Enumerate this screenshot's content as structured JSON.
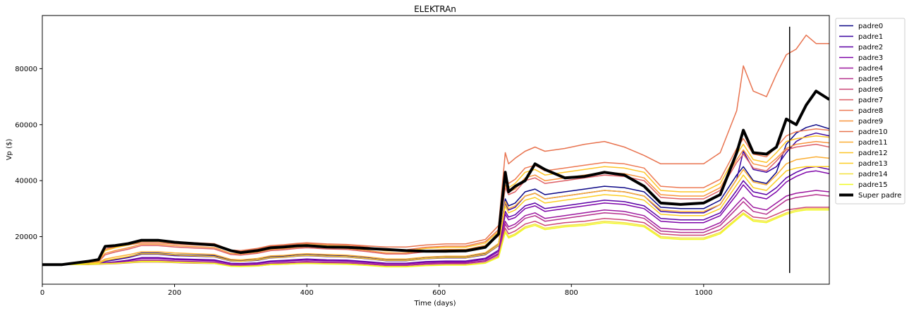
{
  "chart_data": {
    "type": "line",
    "title": "ELEKTRAn",
    "xlabel": "Time (days)",
    "ylabel": "Vp ($)",
    "xlim": [
      0,
      1190
    ],
    "ylim": [
      3000,
      99000
    ],
    "xticks": [
      0,
      200,
      400,
      600,
      800,
      1000
    ],
    "yticks": [
      20000,
      40000,
      60000,
      80000
    ],
    "xtick_labels": [
      "0",
      "200",
      "400",
      "600",
      "800",
      "1000"
    ],
    "ytick_labels": [
      "20000",
      "40000",
      "60000",
      "80000"
    ],
    "grid": false,
    "legend_position": "outside right, top",
    "vline": {
      "x": 1130,
      "ymin": 7000,
      "ymax": 95000,
      "color": "#000000"
    },
    "x": [
      0,
      30,
      50,
      70,
      85,
      95,
      110,
      130,
      150,
      175,
      200,
      230,
      260,
      285,
      300,
      325,
      345,
      365,
      385,
      400,
      430,
      460,
      490,
      520,
      550,
      580,
      610,
      640,
      670,
      690,
      700,
      705,
      715,
      730,
      745,
      760,
      790,
      820,
      850,
      880,
      910,
      935,
      965,
      1000,
      1025,
      1050,
      1060,
      1075,
      1095,
      1110,
      1125,
      1140,
      1155,
      1170,
      1190
    ],
    "series": [
      {
        "name": "padre0",
        "color": "#0d0887",
        "values": [
          10000,
          10000,
          10200,
          10300,
          10500,
          11400,
          11900,
          12800,
          14100,
          14100,
          13600,
          13400,
          13200,
          11600,
          11500,
          11800,
          12800,
          13000,
          13500,
          13700,
          13400,
          13200,
          12600,
          11900,
          11900,
          12600,
          12900,
          12900,
          14100,
          17500,
          33500,
          31000,
          32000,
          36000,
          37000,
          35000,
          36000,
          37000,
          38000,
          37500,
          36000,
          30500,
          30000,
          30000,
          33000,
          42000,
          45000,
          40000,
          39000,
          43000,
          53000,
          57000,
          59000,
          60000,
          58500
        ]
      },
      {
        "name": "padre1",
        "color": "#3a04a0",
        "values": [
          10000,
          10000,
          10200,
          10300,
          10500,
          11200,
          11700,
          12500,
          13700,
          13700,
          13200,
          13000,
          12800,
          11300,
          11200,
          11500,
          12400,
          12600,
          13000,
          13200,
          12900,
          12700,
          12100,
          11400,
          11400,
          12100,
          12400,
          12400,
          13500,
          16800,
          32000,
          29500,
          30500,
          34500,
          35500,
          33500,
          34500,
          35500,
          36500,
          36000,
          34500,
          29000,
          28500,
          28500,
          31500,
          40500,
          50500,
          44000,
          43000,
          45000,
          50000,
          54000,
          56000,
          57000,
          56000
        ]
      },
      {
        "name": "padre2",
        "color": "#5c01a6",
        "values": [
          10000,
          10000,
          10100,
          10200,
          10300,
          10700,
          11000,
          11600,
          12500,
          12500,
          12100,
          11900,
          11700,
          10500,
          10400,
          10600,
          11300,
          11500,
          11800,
          12000,
          11700,
          11600,
          11100,
          10500,
          10500,
          11100,
          11300,
          11300,
          12300,
          15200,
          29000,
          27000,
          27800,
          31000,
          32000,
          30000,
          31000,
          32000,
          33000,
          32500,
          31000,
          26500,
          26000,
          26000,
          28500,
          36500,
          40000,
          36000,
          35000,
          37500,
          41000,
          43000,
          44500,
          45000,
          44000
        ]
      },
      {
        "name": "padre3",
        "color": "#7e03a8",
        "values": [
          10000,
          10000,
          10100,
          10200,
          10300,
          10600,
          10900,
          11400,
          12200,
          12200,
          11800,
          11600,
          11400,
          10300,
          10200,
          10400,
          11000,
          11200,
          11500,
          11600,
          11400,
          11300,
          10800,
          10300,
          10300,
          10800,
          11000,
          11000,
          11900,
          14700,
          28000,
          26000,
          26800,
          30000,
          31000,
          29000,
          30000,
          31000,
          32000,
          31500,
          30000,
          25500,
          25000,
          25000,
          27500,
          35000,
          38500,
          34500,
          33500,
          36000,
          39500,
          41500,
          43000,
          43500,
          42500
        ]
      },
      {
        "name": "padre4",
        "color": "#9c179e",
        "values": [
          10000,
          10000,
          10050,
          10100,
          10200,
          10400,
          10600,
          11000,
          11600,
          11600,
          11300,
          11100,
          10900,
          9900,
          9800,
          10000,
          10500,
          10700,
          11000,
          11100,
          10900,
          10800,
          10400,
          9900,
          9900,
          10400,
          10600,
          10600,
          11400,
          14000,
          25500,
          23500,
          24500,
          27500,
          28500,
          26500,
          27500,
          28500,
          29500,
          29000,
          27500,
          23000,
          22500,
          22500,
          25000,
          31500,
          34000,
          30500,
          29500,
          32000,
          34500,
          35500,
          36000,
          36500,
          36000
        ]
      },
      {
        "name": "padre5",
        "color": "#b52f8c",
        "values": [
          10000,
          10000,
          10050,
          10100,
          10200,
          10400,
          10500,
          10900,
          11400,
          11400,
          11100,
          10900,
          10700,
          9700,
          9600,
          9800,
          10300,
          10500,
          10800,
          10900,
          10700,
          10600,
          10200,
          9700,
          9700,
          10200,
          10400,
          10400,
          11200,
          13600,
          24500,
          22500,
          23500,
          26500,
          27500,
          25500,
          26500,
          27500,
          28500,
          28000,
          26500,
          22000,
          21500,
          21500,
          24000,
          30000,
          32500,
          29000,
          28000,
          30500,
          33000,
          34000,
          34500,
          35000,
          34500
        ]
      },
      {
        "name": "padre6",
        "color": "#cc4778",
        "values": [
          10000,
          10000,
          10000,
          10000,
          10100,
          10200,
          10300,
          10600,
          10900,
          10900,
          10700,
          10500,
          10400,
          9500,
          9400,
          9500,
          10000,
          10100,
          10400,
          10500,
          10300,
          10200,
          9800,
          9300,
          9300,
          9800,
          10000,
          10000,
          10700,
          13000,
          23000,
          21000,
          22000,
          24500,
          25500,
          24000,
          25000,
          25500,
          26500,
          26000,
          25000,
          21000,
          20500,
          20500,
          22500,
          27500,
          29500,
          27000,
          26500,
          28000,
          29500,
          30000,
          30500,
          30500,
          30500
        ]
      },
      {
        "name": "padre7",
        "color": "#de5f65",
        "values": [
          10000,
          10000,
          10300,
          10600,
          11000,
          13500,
          14500,
          15500,
          16800,
          16800,
          16300,
          15900,
          15600,
          13600,
          13400,
          14000,
          15000,
          15300,
          15800,
          16000,
          15600,
          15400,
          14700,
          13800,
          13800,
          14600,
          15000,
          15000,
          16400,
          20300,
          37500,
          35000,
          36000,
          40000,
          41000,
          39000,
          40000,
          41000,
          42000,
          41500,
          40000,
          34000,
          33500,
          33500,
          36500,
          46500,
          49500,
          44500,
          43500,
          47000,
          51000,
          52000,
          52500,
          53000,
          52000
        ]
      },
      {
        "name": "padre8",
        "color": "#ed7953",
        "values": [
          10000,
          10000,
          10400,
          10800,
          11500,
          15500,
          16500,
          17500,
          18800,
          18800,
          18200,
          17800,
          17500,
          15200,
          15000,
          15600,
          16600,
          16900,
          17400,
          17600,
          17200,
          17000,
          16300,
          15300,
          15300,
          16200,
          16600,
          16600,
          18200,
          22500,
          42000,
          39000,
          40500,
          44500,
          45500,
          43500,
          44500,
          45500,
          46500,
          46000,
          44500,
          38000,
          37500,
          37500,
          40500,
          51500,
          55000,
          49500,
          48500,
          52000,
          56000,
          57500,
          58000,
          58500,
          58000
        ]
      },
      {
        "name": "padre9",
        "color": "#f8953d",
        "values": [
          10000,
          10000,
          10300,
          10600,
          11100,
          14000,
          15000,
          16000,
          17300,
          17300,
          16800,
          16400,
          16100,
          14000,
          13800,
          14400,
          15400,
          15700,
          16200,
          16400,
          16000,
          15800,
          15100,
          14200,
          14200,
          15000,
          15400,
          15400,
          16900,
          20800,
          38500,
          36000,
          37000,
          41000,
          42000,
          40000,
          41000,
          42000,
          43000,
          42500,
          41000,
          35000,
          34500,
          34500,
          37500,
          47500,
          51000,
          46000,
          45000,
          48000,
          51500,
          53000,
          53500,
          54000,
          53500
        ]
      },
      {
        "name": "padre10",
        "color": "#e8734f",
        "values": [
          10000,
          10000,
          10500,
          11000,
          12000,
          15500,
          16300,
          17000,
          17800,
          17800,
          17400,
          17000,
          16800,
          15200,
          15000,
          15800,
          16800,
          17100,
          17600,
          17800,
          17400,
          17200,
          16700,
          16300,
          16300,
          17000,
          17400,
          17400,
          19000,
          24000,
          50000,
          46000,
          48000,
          50500,
          52000,
          50500,
          51500,
          53000,
          54000,
          52000,
          49000,
          46000,
          46000,
          46000,
          50000,
          65000,
          81000,
          72000,
          70000,
          78000,
          85000,
          87000,
          92000,
          89000,
          89000
        ]
      },
      {
        "name": "padre11",
        "color": "#fbae33",
        "values": [
          10000,
          10000,
          10200,
          10400,
          10700,
          12000,
          12700,
          13500,
          14600,
          14600,
          14200,
          13900,
          13600,
          11900,
          11700,
          12200,
          13100,
          13300,
          13700,
          13900,
          13600,
          13400,
          12800,
          12000,
          12000,
          12700,
          13000,
          13000,
          14300,
          17600,
          32500,
          30000,
          31000,
          34500,
          35500,
          33500,
          34500,
          35500,
          36500,
          36000,
          34500,
          29500,
          29000,
          29000,
          31500,
          40500,
          44000,
          39500,
          38500,
          42000,
          46000,
          47500,
          48000,
          48500,
          48000
        ]
      },
      {
        "name": "padre12",
        "color": "#fdc527",
        "values": [
          10000,
          10000,
          10400,
          10800,
          11400,
          15000,
          16000,
          17000,
          18300,
          18300,
          17700,
          17300,
          17000,
          14800,
          14600,
          15200,
          16200,
          16500,
          17000,
          17200,
          16800,
          16600,
          15900,
          14900,
          14900,
          15800,
          16200,
          16200,
          17700,
          21900,
          40500,
          37500,
          39000,
          43000,
          44000,
          42000,
          43000,
          44000,
          45000,
          44500,
          43000,
          36500,
          36000,
          36000,
          39000,
          49500,
          53000,
          47500,
          46500,
          50000,
          54000,
          55000,
          55500,
          56000,
          55500
        ]
      },
      {
        "name": "padre13",
        "color": "#fcce25",
        "values": [
          10000,
          10000,
          10150,
          10300,
          10500,
          11500,
          12100,
          12900,
          13900,
          13900,
          13500,
          13200,
          12900,
          11400,
          11200,
          11700,
          12500,
          12700,
          13100,
          13300,
          13000,
          12800,
          12200,
          11500,
          11500,
          12200,
          12500,
          12500,
          13700,
          16900,
          31000,
          28500,
          29500,
          33000,
          34000,
          32000,
          33000,
          34000,
          35000,
          34500,
          33000,
          28000,
          27500,
          27500,
          30000,
          38500,
          42000,
          37500,
          36500,
          40000,
          43500,
          44500,
          45000,
          45000,
          45000
        ]
      },
      {
        "name": "padre14",
        "color": "#f3e13c",
        "values": [
          10000,
          10000,
          10050,
          10100,
          10200,
          10350,
          10500,
          10800,
          11200,
          11200,
          10900,
          10700,
          10500,
          9500,
          9400,
          9600,
          10100,
          10200,
          10400,
          10500,
          10300,
          10200,
          9800,
          9300,
          9300,
          9700,
          9900,
          9900,
          10600,
          12800,
          22000,
          20000,
          21000,
          23500,
          24500,
          23000,
          24000,
          24500,
          25500,
          25000,
          24000,
          20000,
          19500,
          19500,
          21500,
          26500,
          28500,
          26000,
          25500,
          27000,
          28500,
          29500,
          30000,
          30000,
          30000
        ]
      },
      {
        "name": "padre15",
        "color": "#f0f921",
        "values": [
          10000,
          10000,
          10050,
          10100,
          10200,
          10300,
          10400,
          10700,
          11000,
          11000,
          10800,
          10600,
          10400,
          9400,
          9300,
          9500,
          10000,
          10100,
          10300,
          10400,
          10200,
          10100,
          9700,
          9200,
          9200,
          9600,
          9800,
          9800,
          10500,
          12600,
          21500,
          19500,
          20500,
          23000,
          24000,
          22500,
          23500,
          24000,
          25000,
          24500,
          23500,
          19500,
          19000,
          19000,
          21000,
          26000,
          28000,
          25500,
          25000,
          26500,
          28000,
          29000,
          29500,
          29500,
          29500
        ]
      },
      {
        "name": "Super padre",
        "color": "#000000",
        "values": [
          10000,
          10000,
          10600,
          11200,
          11800,
          16500,
          16800,
          17500,
          18700,
          18700,
          18000,
          17500,
          17000,
          15000,
          14300,
          15000,
          16000,
          16300,
          16700,
          16800,
          16300,
          16200,
          15800,
          15400,
          15000,
          14800,
          14800,
          14900,
          16200,
          21000,
          43000,
          36000,
          38000,
          40000,
          46000,
          44000,
          41000,
          41500,
          43000,
          42000,
          38000,
          32000,
          31500,
          32000,
          35000,
          50000,
          58000,
          50000,
          49500,
          52000,
          62000,
          60000,
          67000,
          72000,
          69000
        ]
      }
    ]
  }
}
